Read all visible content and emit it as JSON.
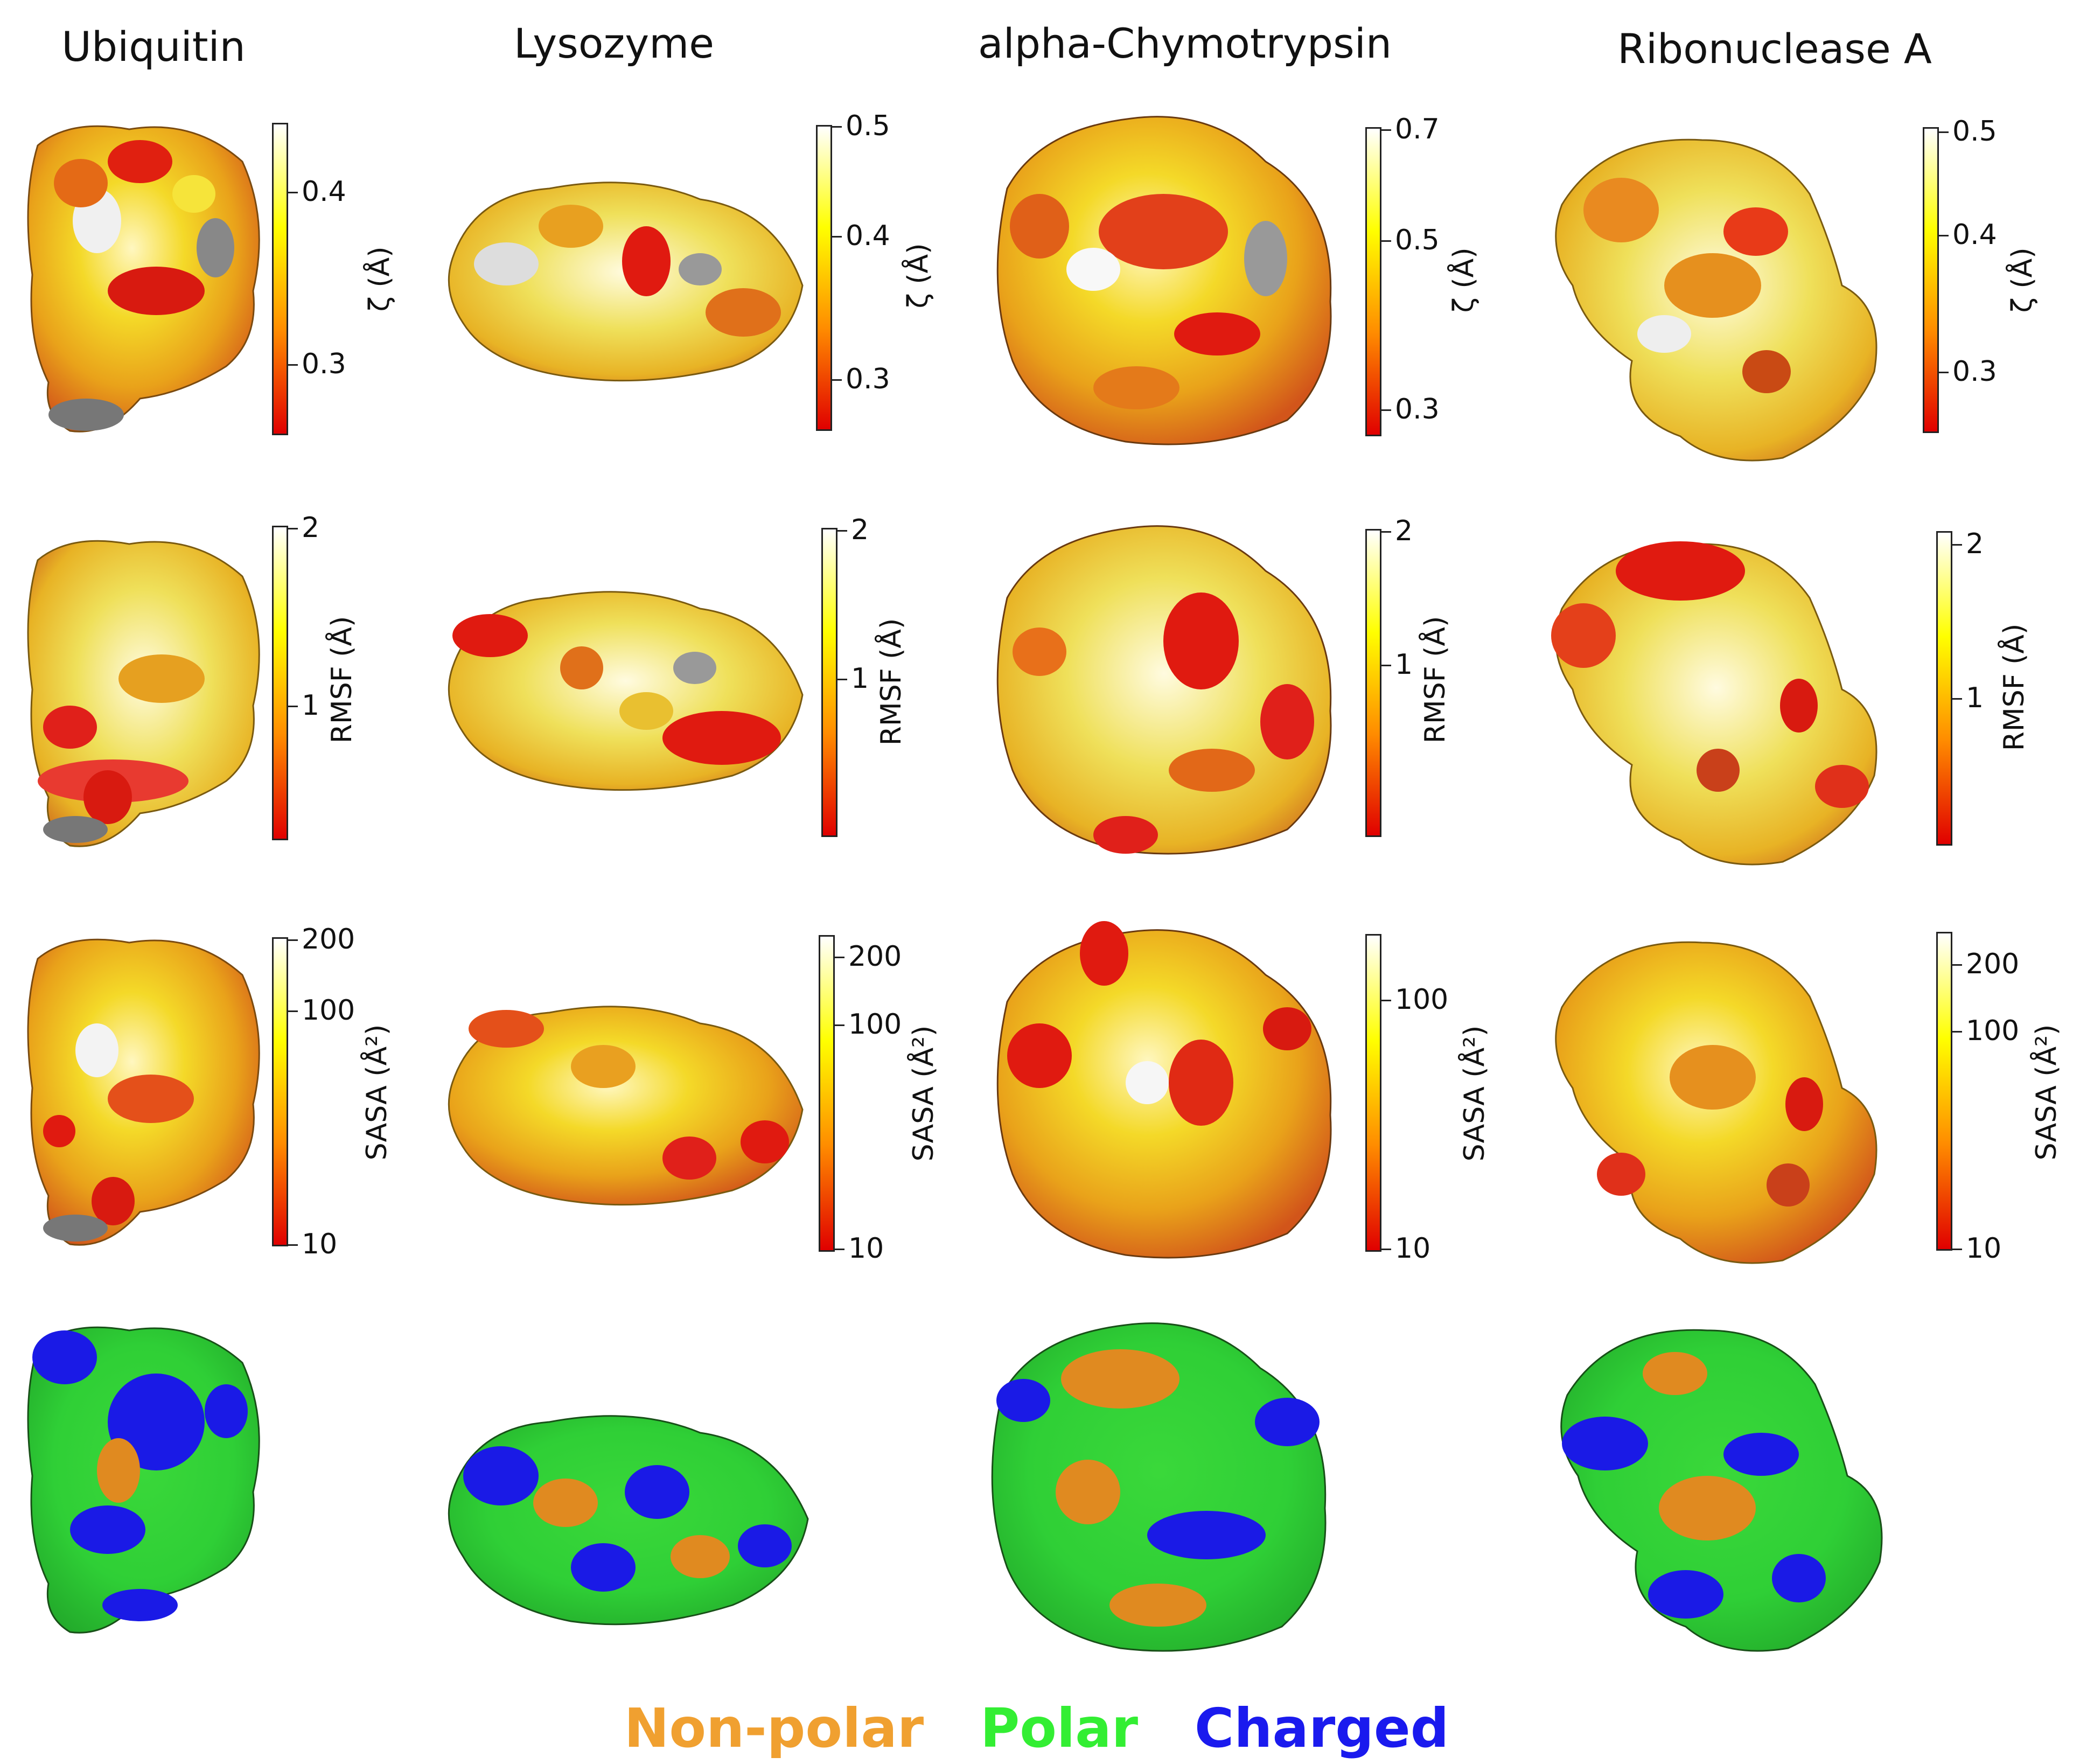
{
  "proteins": [
    "Ubiquitin",
    "Lysozyme",
    "alpha-Chymotrypsin",
    "Ribonuclease A"
  ],
  "rows": [
    {
      "metric": "zeta",
      "label": "ζ (Å)",
      "colormap": [
        "#ffffff",
        "#ffff00",
        "#ff8c00",
        "#e00000"
      ],
      "colorbars": [
        {
          "ticks": [
            "0.4",
            "0.3"
          ]
        },
        {
          "ticks": [
            "0.5",
            "0.4",
            "0.3"
          ]
        },
        {
          "ticks": [
            "0.7",
            "0.5",
            "0.3"
          ]
        },
        {
          "ticks": [
            "0.5",
            "0.4",
            "0.3"
          ]
        }
      ]
    },
    {
      "metric": "rmsf",
      "label": "RMSF (Å)",
      "colormap": [
        "#ffffff",
        "#ffff00",
        "#ff8c00",
        "#e00000"
      ],
      "colorbars": [
        {
          "ticks": [
            "2",
            "1"
          ]
        },
        {
          "ticks": [
            "2",
            "1"
          ]
        },
        {
          "ticks": [
            "2",
            "1"
          ]
        },
        {
          "ticks": [
            "2",
            "1"
          ]
        }
      ]
    },
    {
      "metric": "sasa",
      "label": "SASA (Å²)",
      "colormap": [
        "#ffffff",
        "#ffff00",
        "#ff8c00",
        "#e00000"
      ],
      "colorbars": [
        {
          "ticks": [
            "200",
            "100",
            "10"
          ]
        },
        {
          "ticks": [
            "200",
            "100",
            "10"
          ]
        },
        {
          "ticks": [
            "100",
            "10"
          ]
        },
        {
          "ticks": [
            "200",
            "100",
            "10"
          ]
        }
      ]
    },
    {
      "metric": "residue-type",
      "label": "",
      "colorbars": []
    }
  ],
  "legend": [
    {
      "label": "Non-polar",
      "color": "#f0a030"
    },
    {
      "label": "Polar",
      "color": "#33ee33"
    },
    {
      "label": "Charged",
      "color": "#1a1aee"
    }
  ]
}
